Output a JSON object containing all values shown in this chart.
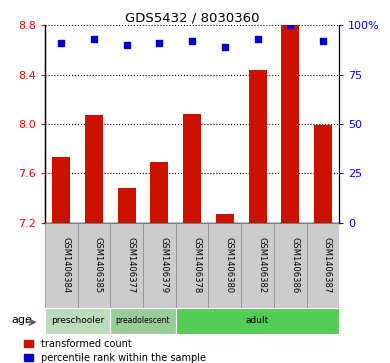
{
  "title": "GDS5432 / 8030360",
  "samples": [
    "GSM1406384",
    "GSM1406385",
    "GSM1406377",
    "GSM1406379",
    "GSM1406378",
    "GSM1406380",
    "GSM1406382",
    "GSM1406386",
    "GSM1406387"
  ],
  "bar_values": [
    7.73,
    8.07,
    7.48,
    7.69,
    8.08,
    7.27,
    8.44,
    8.8,
    7.99
  ],
  "percentile_values": [
    91,
    93,
    90,
    91,
    92,
    89,
    93,
    100,
    92
  ],
  "age_groups": [
    {
      "label": "preschooler",
      "start": 0,
      "end": 2,
      "color": "#bbddbb"
    },
    {
      "label": "preadolescent",
      "start": 2,
      "end": 4,
      "color": "#99cc99"
    },
    {
      "label": "adult",
      "start": 4,
      "end": 9,
      "color": "#55cc55"
    }
  ],
  "bar_color": "#cc1100",
  "percentile_color": "#0000cc",
  "ylim_left": [
    7.2,
    8.8
  ],
  "ylim_right": [
    0,
    100
  ],
  "yticks_left": [
    7.2,
    7.6,
    8.0,
    8.4,
    8.8
  ],
  "yticks_right": [
    0,
    25,
    50,
    75,
    100
  ],
  "background_color": "#ffffff",
  "plot_bg_color": "#ffffff",
  "cell_bg": "#cccccc",
  "cell_border": "#888888"
}
